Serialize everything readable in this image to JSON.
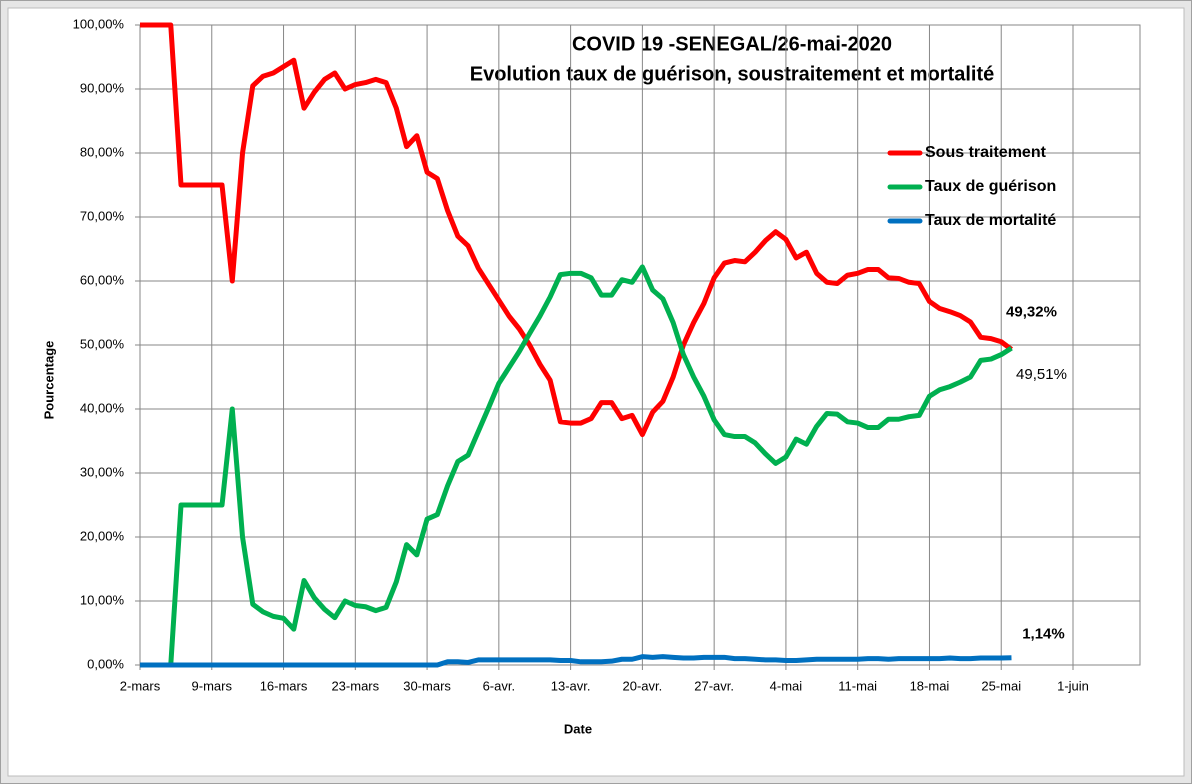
{
  "chart_data": {
    "type": "line",
    "title": "COVID 19 -SENEGAL/26-mai-2020",
    "subtitle": "Evolution taux de guérison, soustraitement et mortalité",
    "x_label": "Date",
    "y_label": "Pourcentage",
    "categories": [
      "2-mars",
      null,
      null,
      null,
      null,
      null,
      null,
      "9-mars",
      null,
      null,
      null,
      null,
      null,
      null,
      "16-mars",
      null,
      null,
      null,
      null,
      null,
      null,
      "23-mars",
      null,
      null,
      null,
      null,
      null,
      null,
      "30-mars",
      null,
      null,
      null,
      null,
      null,
      null,
      "6-avr.",
      null,
      null,
      null,
      null,
      null,
      null,
      "13-avr.",
      null,
      null,
      null,
      null,
      null,
      null,
      "20-avr.",
      null,
      null,
      null,
      null,
      null,
      null,
      "27-avr.",
      null,
      null,
      null,
      null,
      null,
      null,
      "4-mai",
      null,
      null,
      null,
      null,
      null,
      null,
      "11-mai",
      null,
      null,
      null,
      null,
      null,
      null,
      "18-mai",
      null,
      null,
      null,
      null,
      null,
      null,
      "25-mai",
      null,
      null,
      null,
      null,
      null,
      null,
      "1-juin"
    ],
    "ylim": [
      0,
      100
    ],
    "yticks": [
      {
        "value": 0,
        "label": "0,00%"
      },
      {
        "value": 10,
        "label": "10,00%"
      },
      {
        "value": 20,
        "label": "20,00%"
      },
      {
        "value": 30,
        "label": "30,00%"
      },
      {
        "value": 40,
        "label": "40,00%"
      },
      {
        "value": 50,
        "label": "50,00%"
      },
      {
        "value": 60,
        "label": "60,00%"
      },
      {
        "value": 70,
        "label": "70,00%"
      },
      {
        "value": 80,
        "label": "80,00%"
      },
      {
        "value": 90,
        "label": "90,00%"
      },
      {
        "value": 100,
        "label": "100,00%"
      }
    ],
    "grid": true,
    "legend": "upper right",
    "series": [
      {
        "name": "Sous traitement",
        "color": "#ff0000",
        "values": [
          100,
          100,
          100,
          100,
          75,
          75,
          75,
          75,
          75,
          60,
          80,
          90.5,
          92,
          92.5,
          93.5,
          94.5,
          87,
          89.5,
          91.5,
          92.5,
          90,
          90.7,
          91,
          91.5,
          91,
          87,
          81,
          82.7,
          77,
          76,
          71,
          67,
          65.5,
          62,
          59.5,
          57,
          54.5,
          52.5,
          50,
          47,
          44.5,
          38,
          37.8,
          37.8,
          38.5,
          41,
          41,
          38.5,
          39,
          36,
          39.5,
          41.2,
          45,
          50,
          53.5,
          56.5,
          60.5,
          62.8,
          63.2,
          63,
          64.5,
          66.3,
          67.7,
          66.5,
          63.6,
          64.5,
          61.2,
          59.8,
          59.6,
          60.9,
          61.2,
          61.8,
          61.8,
          60.5,
          60.4,
          59.8,
          59.6,
          56.8,
          55.7,
          55.2,
          54.6,
          53.6,
          51.2,
          51,
          50.5,
          49.32,
          null,
          null,
          null,
          null,
          null,
          null
        ],
        "value_labels": [
          null,
          null,
          null,
          null,
          null,
          null,
          null,
          null,
          null,
          null,
          null,
          null,
          null,
          null,
          null,
          null,
          null,
          null,
          null,
          null,
          null,
          null,
          null,
          null,
          null,
          null,
          null,
          null,
          null,
          null,
          null,
          null,
          null,
          null,
          null,
          null,
          null,
          null,
          null,
          null,
          null,
          null,
          null,
          null,
          null,
          null,
          null,
          null,
          null,
          null,
          null,
          null,
          null,
          null,
          null,
          null,
          null,
          null,
          null,
          null,
          null,
          null,
          null,
          null,
          null,
          null,
          null,
          null,
          null,
          null,
          null,
          null,
          null,
          null,
          null,
          null,
          null,
          null,
          null,
          null,
          null,
          null,
          null,
          null,
          null,
          "49,32%",
          null,
          null,
          null,
          null,
          null,
          null
        ]
      },
      {
        "name": "Taux de guérison",
        "color": "#00b050",
        "values": [
          0,
          0,
          0,
          0,
          25,
          25,
          25,
          25,
          25,
          40,
          20,
          9.5,
          8.3,
          7.6,
          7.3,
          5.6,
          13.2,
          10.5,
          8.7,
          7.4,
          10,
          9.3,
          9.1,
          8.5,
          9,
          13,
          18.8,
          17.2,
          22.8,
          23.5,
          28,
          31.8,
          32.8,
          36.5,
          40.2,
          44,
          46.5,
          49,
          51.8,
          54.5,
          57.5,
          61,
          61.2,
          61.2,
          60.5,
          57.8,
          57.8,
          60.2,
          59.8,
          62.2,
          58.6,
          57.2,
          53.5,
          48.5,
          45,
          42,
          38.3,
          36,
          35.7,
          35.7,
          34.7,
          33,
          31.5,
          32.5,
          35.3,
          34.5,
          37.3,
          39.3,
          39.2,
          38,
          37.8,
          37.1,
          37.1,
          38.4,
          38.4,
          38.8,
          39,
          42,
          43,
          43.5,
          44.2,
          45,
          47.6,
          47.8,
          48.5,
          49.51,
          null,
          null,
          null,
          null,
          null,
          null
        ],
        "value_labels": [
          null,
          null,
          null,
          null,
          null,
          null,
          null,
          null,
          null,
          null,
          null,
          null,
          null,
          null,
          null,
          null,
          null,
          null,
          null,
          null,
          null,
          null,
          null,
          null,
          null,
          null,
          null,
          null,
          null,
          null,
          null,
          null,
          null,
          null,
          null,
          null,
          null,
          null,
          null,
          null,
          null,
          null,
          null,
          null,
          null,
          null,
          null,
          null,
          null,
          null,
          null,
          null,
          null,
          null,
          null,
          null,
          null,
          null,
          null,
          null,
          null,
          null,
          null,
          null,
          null,
          null,
          null,
          null,
          null,
          null,
          null,
          null,
          null,
          null,
          null,
          null,
          null,
          null,
          null,
          null,
          null,
          null,
          null,
          null,
          null,
          "49,51%",
          null,
          null,
          null,
          null,
          null,
          null
        ]
      },
      {
        "name": "Taux de mortalité",
        "color": "#0070c0",
        "values": [
          0,
          0,
          0,
          0,
          0,
          0,
          0,
          0,
          0,
          0,
          0,
          0,
          0,
          0,
          0,
          0,
          0,
          0,
          0,
          0,
          0,
          0,
          0,
          0,
          0,
          0,
          0,
          0,
          0,
          0,
          0.5,
          0.5,
          0.4,
          0.8,
          0.8,
          0.8,
          0.8,
          0.8,
          0.8,
          0.8,
          0.8,
          0.7,
          0.7,
          0.5,
          0.5,
          0.5,
          0.6,
          0.9,
          0.9,
          1.3,
          1.2,
          1.3,
          1.2,
          1.1,
          1.1,
          1.2,
          1.2,
          1.2,
          1.0,
          1.0,
          0.9,
          0.8,
          0.8,
          0.7,
          0.7,
          0.8,
          0.9,
          0.9,
          0.9,
          0.9,
          0.9,
          1.0,
          1.0,
          0.9,
          1.0,
          1.0,
          1.0,
          1.0,
          1.0,
          1.1,
          1.0,
          1.0,
          1.1,
          1.1,
          1.1,
          1.14,
          null,
          null,
          null,
          null,
          null,
          null
        ],
        "value_labels": [
          null,
          null,
          null,
          null,
          null,
          null,
          null,
          null,
          null,
          null,
          null,
          null,
          null,
          null,
          null,
          null,
          null,
          null,
          null,
          null,
          null,
          null,
          null,
          null,
          null,
          null,
          null,
          null,
          null,
          null,
          null,
          null,
          null,
          null,
          null,
          null,
          null,
          null,
          null,
          null,
          null,
          null,
          null,
          null,
          null,
          null,
          null,
          null,
          null,
          null,
          null,
          null,
          null,
          null,
          null,
          null,
          null,
          null,
          null,
          null,
          null,
          null,
          null,
          null,
          null,
          null,
          null,
          null,
          null,
          null,
          null,
          null,
          null,
          null,
          null,
          null,
          null,
          null,
          null,
          null,
          null,
          null,
          null,
          null,
          null,
          "1,14%",
          null,
          null,
          null,
          null,
          null,
          null
        ]
      }
    ]
  }
}
